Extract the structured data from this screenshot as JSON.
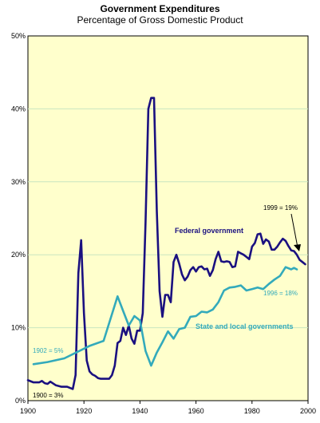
{
  "chart_data": {
    "type": "line",
    "title": "Government Expenditures",
    "subtitle": "Percentage of Gross Domestic Product",
    "xlabel": "",
    "ylabel": "",
    "xlim": [
      1900,
      2000
    ],
    "ylim": [
      0,
      50
    ],
    "x_ticks": [
      "1900",
      "1920",
      "1940",
      "1960",
      "1980",
      "2000"
    ],
    "x_tick_values": [
      1900,
      1920,
      1940,
      1960,
      1980,
      2000
    ],
    "y_ticks": [
      "0%",
      "10%",
      "20%",
      "30%",
      "40%",
      "50%"
    ],
    "y_tick_values": [
      0,
      10,
      20,
      30,
      40,
      50
    ],
    "grid": true,
    "plot_background": "#ffffcc",
    "grid_color": "#c8e6c0",
    "series": [
      {
        "name": "Federal government",
        "color": "#1a1080",
        "points": [
          [
            1900,
            2.8
          ],
          [
            1902,
            2.5
          ],
          [
            1904,
            2.5
          ],
          [
            1905,
            2.7
          ],
          [
            1906,
            2.4
          ],
          [
            1907,
            2.3
          ],
          [
            1908,
            2.6
          ],
          [
            1910,
            2.1
          ],
          [
            1912,
            1.9
          ],
          [
            1914,
            1.9
          ],
          [
            1916,
            1.6
          ],
          [
            1917,
            3.5
          ],
          [
            1918,
            17.5
          ],
          [
            1919,
            22.0
          ],
          [
            1920,
            12.0
          ],
          [
            1921,
            5.5
          ],
          [
            1922,
            4.0
          ],
          [
            1923,
            3.6
          ],
          [
            1924,
            3.4
          ],
          [
            1925,
            3.1
          ],
          [
            1926,
            3.0
          ],
          [
            1927,
            3.0
          ],
          [
            1928,
            3.0
          ],
          [
            1929,
            3.0
          ],
          [
            1930,
            3.5
          ],
          [
            1931,
            4.8
          ],
          [
            1932,
            7.9
          ],
          [
            1933,
            8.2
          ],
          [
            1934,
            10.0
          ],
          [
            1935,
            9.0
          ],
          [
            1936,
            10.3
          ],
          [
            1937,
            8.5
          ],
          [
            1938,
            7.8
          ],
          [
            1939,
            9.6
          ],
          [
            1940,
            9.6
          ],
          [
            1941,
            12.0
          ],
          [
            1942,
            24.5
          ],
          [
            1943,
            40.0
          ],
          [
            1944,
            41.5
          ],
          [
            1945,
            41.5
          ],
          [
            1946,
            26.0
          ],
          [
            1947,
            15.0
          ],
          [
            1948,
            11.5
          ],
          [
            1949,
            14.5
          ],
          [
            1950,
            14.5
          ],
          [
            1951,
            13.5
          ],
          [
            1952,
            19.0
          ],
          [
            1953,
            20.0
          ],
          [
            1954,
            18.8
          ],
          [
            1955,
            17.3
          ],
          [
            1956,
            16.5
          ],
          [
            1957,
            17.0
          ],
          [
            1958,
            17.9
          ],
          [
            1959,
            18.3
          ],
          [
            1960,
            17.7
          ],
          [
            1961,
            18.3
          ],
          [
            1962,
            18.4
          ],
          [
            1963,
            18.0
          ],
          [
            1964,
            18.1
          ],
          [
            1965,
            17.1
          ],
          [
            1966,
            17.9
          ],
          [
            1967,
            19.4
          ],
          [
            1968,
            20.4
          ],
          [
            1969,
            19.1
          ],
          [
            1970,
            19.0
          ],
          [
            1971,
            19.1
          ],
          [
            1972,
            19.0
          ],
          [
            1973,
            18.3
          ],
          [
            1974,
            18.4
          ],
          [
            1975,
            20.4
          ],
          [
            1976,
            20.2
          ],
          [
            1977,
            20.0
          ],
          [
            1978,
            19.7
          ],
          [
            1979,
            19.4
          ],
          [
            1980,
            21.1
          ],
          [
            1981,
            21.6
          ],
          [
            1982,
            22.8
          ],
          [
            1983,
            22.9
          ],
          [
            1984,
            21.5
          ],
          [
            1985,
            22.1
          ],
          [
            1986,
            21.8
          ],
          [
            1987,
            20.7
          ],
          [
            1988,
            20.7
          ],
          [
            1989,
            21.1
          ],
          [
            1990,
            21.7
          ],
          [
            1991,
            22.2
          ],
          [
            1992,
            21.9
          ],
          [
            1993,
            21.2
          ],
          [
            1994,
            20.6
          ],
          [
            1995,
            20.5
          ],
          [
            1996,
            20.0
          ],
          [
            1997,
            19.3
          ],
          [
            1998,
            19.0
          ],
          [
            1999,
            18.7
          ]
        ]
      },
      {
        "name": "State and local governments",
        "color": "#33aabb",
        "points": [
          [
            1902,
            5.0
          ],
          [
            1907,
            5.3
          ],
          [
            1913,
            5.8
          ],
          [
            1922,
            7.5
          ],
          [
            1927,
            8.2
          ],
          [
            1932,
            14.3
          ],
          [
            1934,
            12.3
          ],
          [
            1936,
            10.3
          ],
          [
            1938,
            11.6
          ],
          [
            1940,
            11.0
          ],
          [
            1942,
            6.8
          ],
          [
            1944,
            4.8
          ],
          [
            1946,
            6.6
          ],
          [
            1948,
            8.0
          ],
          [
            1950,
            9.5
          ],
          [
            1951,
            9.0
          ],
          [
            1952,
            8.5
          ],
          [
            1954,
            9.8
          ],
          [
            1956,
            10.0
          ],
          [
            1958,
            11.5
          ],
          [
            1960,
            11.6
          ],
          [
            1962,
            12.2
          ],
          [
            1964,
            12.1
          ],
          [
            1966,
            12.5
          ],
          [
            1968,
            13.5
          ],
          [
            1970,
            15.1
          ],
          [
            1972,
            15.5
          ],
          [
            1974,
            15.6
          ],
          [
            1976,
            15.8
          ],
          [
            1978,
            15.1
          ],
          [
            1980,
            15.3
          ],
          [
            1982,
            15.5
          ],
          [
            1984,
            15.3
          ],
          [
            1986,
            16.0
          ],
          [
            1988,
            16.6
          ],
          [
            1990,
            17.1
          ],
          [
            1992,
            18.3
          ],
          [
            1994,
            18.0
          ],
          [
            1995,
            18.2
          ],
          [
            1996,
            18.0
          ]
        ]
      }
    ],
    "labels": {
      "federal": "Federal government",
      "state_local": "State and local governments"
    },
    "annotations": {
      "a1900": "1900 = 3%",
      "a1902": "1902 = 5%",
      "a1999": "1999 = 19%",
      "a1996": "1996 = 18%"
    }
  }
}
